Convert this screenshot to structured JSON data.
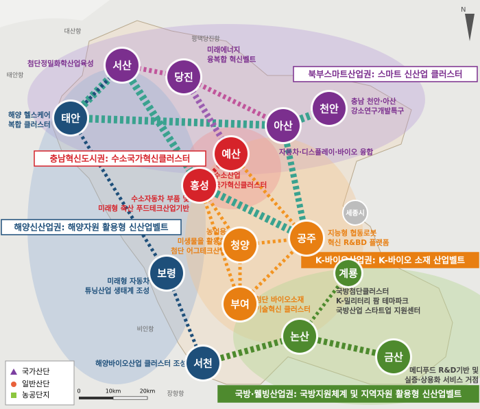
{
  "map": {
    "north": "N",
    "cities": [
      "서산",
      "당진",
      "천안",
      "아산",
      "태안",
      "예산",
      "홍성",
      "공주",
      "청양",
      "부여",
      "보령",
      "서천",
      "논산",
      "계룡",
      "금산"
    ],
    "sejong": "세종시",
    "banners": [
      "북부스마트산업권: 스마트 신산업 클러스터",
      "충남혁신도시권: 수소국가혁신클러스터",
      "해양신산업권: 해양자원 활용형 신산업벨트",
      "K-바이오산업권: K-바이오 소재 산업벨트",
      "국방·웰빙산업권: 국방지원체계 및 지역자원 활용형 신산업벨트"
    ],
    "notes": [
      [
        "첨단정밀화학산업육성"
      ],
      [
        "미래에너지",
        "융복합 혁신벨트"
      ],
      [
        "충남 천안·아산",
        "강소연구개발특구"
      ],
      [
        "자동차·디스플레이·바이오 융합"
      ],
      [
        "해양 헬스케어",
        "복합 클러스터"
      ],
      [
        "수소산업",
        "국가혁신클러스터"
      ],
      [
        "수소자동차 부품 및",
        "미래형 축산 푸드테크산업기반"
      ],
      [
        "지능형 협동로봇",
        "혁신 R&BD 플랫폼"
      ],
      [
        "농업용",
        "미생물을 활용한",
        "첨단 어그테크산업"
      ],
      [
        "미래형 자동차",
        "튜닝산업 생태계 조성"
      ],
      [
        "첨단 바이오소재",
        "기술혁신 클러스터"
      ],
      [
        "국방첨단클러스터",
        "K-밀리터리 팜 테마파크",
        "국방산업 스타트업 지원센터"
      ],
      [
        "메디푸드 R&D기반 및",
        "실증·상용화 서비스 거점"
      ],
      [
        "해양바이오산업 클러스터 조성"
      ]
    ],
    "ports": [
      "대산항",
      "평택당진항",
      "태안항",
      "비인항",
      "장항항"
    ],
    "legend": [
      "국가산단",
      "일반산단",
      "농공단지"
    ],
    "scale": [
      "0",
      "10km",
      "20km"
    ]
  }
}
